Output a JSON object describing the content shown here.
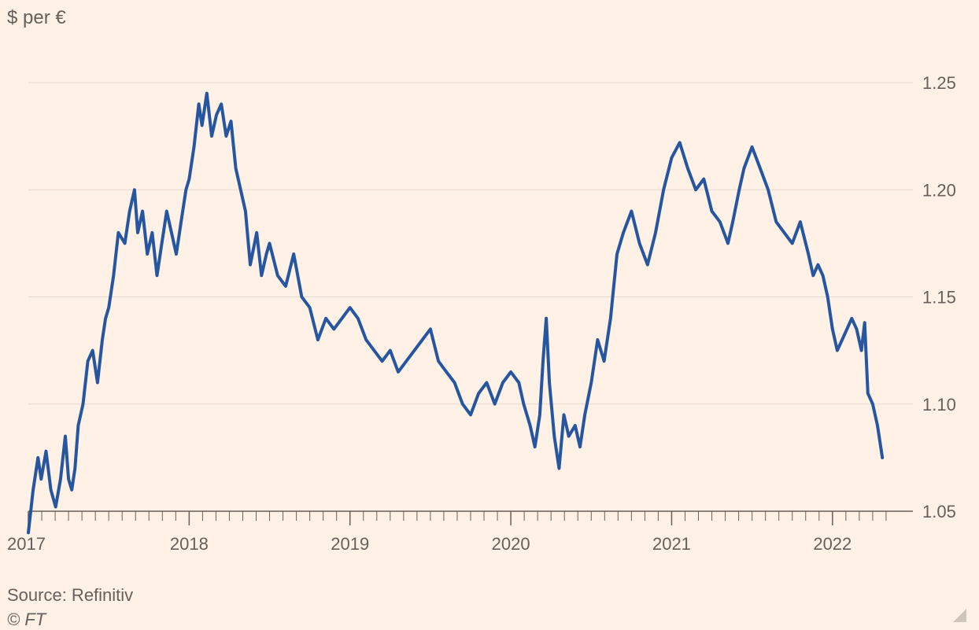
{
  "unit_label": "$ per €",
  "source": "Source: Refinitiv",
  "copyright": "© FT",
  "colors": {
    "background": "#fff1e5",
    "line": "#2756a0",
    "grid": "#e6d9ce",
    "axis": "#66605c",
    "text": "#66605c"
  },
  "chart_data": {
    "type": "line",
    "title": "",
    "xlabel": "",
    "ylabel": "$ per €",
    "xlim": [
      2017.0,
      2022.5
    ],
    "ylim": [
      1.05,
      1.25
    ],
    "x_ticks": [
      "2017",
      "2018",
      "2019",
      "2020",
      "2021",
      "2022"
    ],
    "y_ticks": [
      "1.05",
      "1.10",
      "1.15",
      "1.20",
      "1.25"
    ],
    "grid": "horizontal",
    "legend": "none",
    "series": [
      {
        "name": "",
        "x": [
          2017.0,
          2017.03,
          2017.06,
          2017.08,
          2017.11,
          2017.14,
          2017.17,
          2017.2,
          2017.23,
          2017.25,
          2017.27,
          2017.29,
          2017.31,
          2017.34,
          2017.37,
          2017.4,
          2017.43,
          2017.46,
          2017.48,
          2017.5,
          2017.53,
          2017.56,
          2017.6,
          2017.63,
          2017.66,
          2017.68,
          2017.71,
          2017.74,
          2017.77,
          2017.8,
          2017.83,
          2017.86,
          2017.89,
          2017.92,
          2017.95,
          2017.98,
          2018.0,
          2018.03,
          2018.06,
          2018.08,
          2018.11,
          2018.14,
          2018.17,
          2018.2,
          2018.23,
          2018.26,
          2018.29,
          2018.32,
          2018.35,
          2018.38,
          2018.42,
          2018.45,
          2018.48,
          2018.5,
          2018.55,
          2018.6,
          2018.65,
          2018.7,
          2018.75,
          2018.8,
          2018.85,
          2018.9,
          2018.95,
          2019.0,
          2019.05,
          2019.1,
          2019.15,
          2019.2,
          2019.25,
          2019.3,
          2019.35,
          2019.4,
          2019.45,
          2019.5,
          2019.55,
          2019.6,
          2019.65,
          2019.7,
          2019.75,
          2019.8,
          2019.85,
          2019.9,
          2019.95,
          2020.0,
          2020.05,
          2020.08,
          2020.12,
          2020.15,
          2020.18,
          2020.2,
          2020.22,
          2020.24,
          2020.27,
          2020.3,
          2020.33,
          2020.36,
          2020.4,
          2020.43,
          2020.46,
          2020.5,
          2020.54,
          2020.58,
          2020.62,
          2020.66,
          2020.7,
          2020.75,
          2020.8,
          2020.85,
          2020.9,
          2020.95,
          2021.0,
          2021.05,
          2021.1,
          2021.15,
          2021.2,
          2021.25,
          2021.3,
          2021.35,
          2021.38,
          2021.42,
          2021.45,
          2021.5,
          2021.55,
          2021.6,
          2021.65,
          2021.7,
          2021.75,
          2021.8,
          2021.85,
          2021.88,
          2021.91,
          2021.94,
          2021.97,
          2022.0,
          2022.03,
          2022.06,
          2022.09,
          2022.12,
          2022.15,
          2022.18,
          2022.2,
          2022.22,
          2022.25,
          2022.28,
          2022.31
        ],
        "y": [
          1.04,
          1.06,
          1.075,
          1.065,
          1.078,
          1.06,
          1.052,
          1.065,
          1.085,
          1.065,
          1.06,
          1.07,
          1.09,
          1.1,
          1.12,
          1.125,
          1.11,
          1.13,
          1.14,
          1.145,
          1.16,
          1.18,
          1.175,
          1.19,
          1.2,
          1.18,
          1.19,
          1.17,
          1.18,
          1.16,
          1.175,
          1.19,
          1.18,
          1.17,
          1.185,
          1.2,
          1.205,
          1.22,
          1.24,
          1.23,
          1.245,
          1.225,
          1.235,
          1.24,
          1.225,
          1.232,
          1.21,
          1.2,
          1.19,
          1.165,
          1.18,
          1.16,
          1.17,
          1.175,
          1.16,
          1.155,
          1.17,
          1.15,
          1.145,
          1.13,
          1.14,
          1.135,
          1.14,
          1.145,
          1.14,
          1.13,
          1.125,
          1.12,
          1.125,
          1.115,
          1.12,
          1.125,
          1.13,
          1.135,
          1.12,
          1.115,
          1.11,
          1.1,
          1.095,
          1.105,
          1.11,
          1.1,
          1.11,
          1.115,
          1.11,
          1.1,
          1.09,
          1.08,
          1.095,
          1.12,
          1.14,
          1.11,
          1.085,
          1.07,
          1.095,
          1.085,
          1.09,
          1.08,
          1.095,
          1.11,
          1.13,
          1.12,
          1.14,
          1.17,
          1.18,
          1.19,
          1.175,
          1.165,
          1.18,
          1.2,
          1.215,
          1.222,
          1.21,
          1.2,
          1.205,
          1.19,
          1.185,
          1.175,
          1.185,
          1.2,
          1.21,
          1.22,
          1.21,
          1.2,
          1.185,
          1.18,
          1.175,
          1.185,
          1.17,
          1.16,
          1.165,
          1.16,
          1.15,
          1.135,
          1.125,
          1.13,
          1.135,
          1.14,
          1.135,
          1.125,
          1.138,
          1.105,
          1.1,
          1.09,
          1.075
        ]
      }
    ]
  }
}
